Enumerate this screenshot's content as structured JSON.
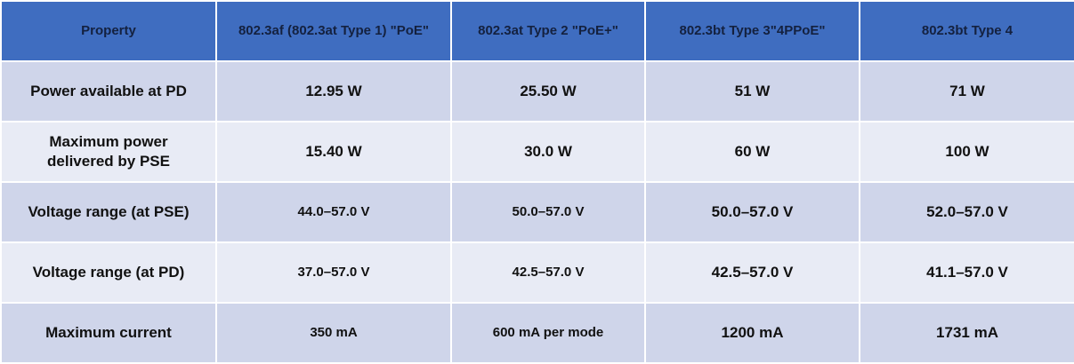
{
  "table": {
    "header": [
      "Property",
      "802.3af (802.3at Type 1) \"PoE\"",
      "802.3at Type 2 \"PoE+\"",
      "802.3bt Type 3\"4PPoE\"",
      "802.3bt Type 4"
    ],
    "rows": [
      [
        "Power available at PD",
        "12.95 W",
        "25.50 W",
        "51 W",
        "71 W"
      ],
      [
        "Maximum power delivered by PSE",
        "15.40 W",
        "30.0 W",
        "60 W",
        "100 W"
      ],
      [
        "Voltage range (at PSE)",
        "44.0–57.0 V",
        "50.0–57.0 V",
        "50.0–57.0 V",
        "52.0–57.0 V"
      ],
      [
        "Voltage range (at PD)",
        "37.0–57.0 V",
        "42.5–57.0 V",
        "42.5–57.0 V",
        "41.1–57.0 V"
      ],
      [
        "Maximum current",
        "350 mA",
        "600 mA per mode",
        "1200 mA",
        "1731 mA"
      ]
    ]
  }
}
